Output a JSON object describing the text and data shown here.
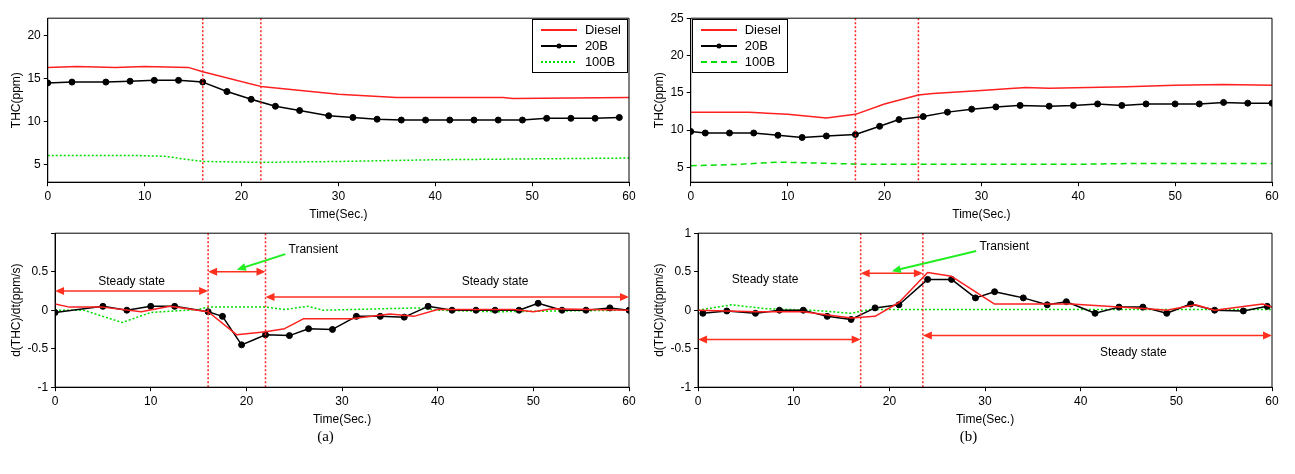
{
  "chart_data": [
    {
      "type": "line",
      "xlabel": "Time(Sec.)",
      "ylabel": "THC(ppm)",
      "xlim": [
        0,
        60
      ],
      "xticks": [
        0,
        10,
        20,
        30,
        40,
        50,
        60
      ],
      "ylim": [
        3,
        22
      ],
      "yticks": [
        5,
        10,
        15,
        20
      ],
      "grid": false,
      "legend": "top right",
      "ref_lines": [
        {
          "axis": "x",
          "value": 16,
          "color": "#ff2020",
          "line_style": "dotted"
        },
        {
          "axis": "x",
          "value": 22,
          "color": "#ff2020",
          "line_style": "dotted"
        }
      ],
      "series": [
        {
          "name": "Diesel",
          "color": "#ff2020",
          "line_style": "solid",
          "marker": "none",
          "x": [
            0,
            3,
            7,
            10,
            14.5,
            16,
            22,
            30,
            36,
            47,
            48,
            60
          ],
          "values": [
            16.3,
            16.4,
            16.3,
            16.4,
            16.3,
            15.8,
            14.1,
            13.2,
            12.8,
            12.8,
            12.7,
            12.8
          ]
        },
        {
          "name": "20B",
          "color": "#000000",
          "line_style": "solid",
          "marker": "circle",
          "x": [
            0,
            2.5,
            6,
            8.5,
            11,
            13.5,
            16,
            18.5,
            21,
            23.5,
            26,
            29,
            31.5,
            34,
            36.5,
            39,
            41.5,
            44,
            46.5,
            49,
            51.5,
            54,
            56.5,
            59
          ],
          "values": [
            14.5,
            14.6,
            14.6,
            14.7,
            14.8,
            14.8,
            14.6,
            13.5,
            12.6,
            11.8,
            11.3,
            10.7,
            10.5,
            10.3,
            10.2,
            10.2,
            10.2,
            10.2,
            10.2,
            10.2,
            10.4,
            10.4,
            10.4,
            10.5
          ]
        },
        {
          "name": "100B",
          "color": "#00dd00",
          "line_style": "dotted",
          "marker": "none",
          "x": [
            0,
            9,
            12,
            16,
            22,
            30,
            40,
            50,
            60
          ],
          "values": [
            6.1,
            6.1,
            6.0,
            5.4,
            5.3,
            5.4,
            5.6,
            5.7,
            5.8
          ]
        }
      ]
    },
    {
      "type": "line",
      "xlabel": "Time(Sec.)",
      "ylabel": "d(THC)/dt(ppm/s)",
      "xlim": [
        0,
        60
      ],
      "xticks": [
        0,
        10,
        20,
        30,
        40,
        50,
        60
      ],
      "ylim": [
        -1,
        1
      ],
      "yticks": [
        -1,
        -0.5,
        0,
        0.5,
        {
          "value": 1,
          "label": null
        }
      ],
      "grid": false,
      "ref_lines": [
        {
          "axis": "x",
          "value": 16,
          "color": "#ff2020",
          "line_style": "dotted"
        },
        {
          "axis": "x",
          "value": 22,
          "color": "#ff2020",
          "line_style": "dotted"
        }
      ],
      "annotations": [
        "Steady state",
        "Transient",
        "Steady state",
        "(a)"
      ],
      "series": [
        {
          "color": "#ff2020",
          "line_style": "solid",
          "marker": "none",
          "x": [
            0,
            1.5,
            5,
            9,
            12,
            16,
            19,
            22,
            24,
            26,
            31,
            35,
            37.5,
            40,
            48,
            50,
            52,
            60
          ],
          "values": [
            0.08,
            0.04,
            0.04,
            -0.02,
            0.05,
            -0.02,
            -0.32,
            -0.28,
            -0.24,
            -0.11,
            -0.11,
            -0.05,
            -0.08,
            0.01,
            0.01,
            -0.02,
            0.02,
            0
          ]
        },
        {
          "color": "#000000",
          "line_style": "solid",
          "marker": "circle",
          "x": [
            0,
            5,
            7.5,
            10,
            12.5,
            16,
            17.5,
            19.5,
            22,
            24.5,
            26.5,
            29,
            31.5,
            34,
            36.5,
            39,
            41.5,
            44,
            46,
            48.5,
            50.5,
            53,
            55.5,
            58,
            60
          ],
          "values": [
            -0.03,
            0.05,
            0,
            0.05,
            0.05,
            -0.02,
            -0.08,
            -0.45,
            -0.32,
            -0.33,
            -0.24,
            -0.25,
            -0.08,
            -0.08,
            -0.09,
            0.05,
            0,
            0,
            0,
            0,
            0.09,
            0,
            0,
            0.03,
            0
          ]
        },
        {
          "color": "#00dd00",
          "line_style": "dotted",
          "marker": "none",
          "x": [
            0,
            3,
            7,
            10,
            15,
            16,
            22,
            24,
            26.5,
            28,
            38,
            40,
            46,
            60
          ],
          "values": [
            0,
            0,
            -0.16,
            -0.03,
            0.01,
            0.04,
            0.04,
            0.01,
            0.05,
            0,
            0.03,
            0,
            -0.02,
            0
          ]
        }
      ]
    },
    {
      "type": "line",
      "xlabel": "Time(Sec.)",
      "ylabel": "THC(ppm)",
      "xlim": [
        0,
        60
      ],
      "xticks": [
        0,
        10,
        20,
        30,
        40,
        50,
        60
      ],
      "ylim": [
        3,
        25
      ],
      "yticks": [
        5,
        10,
        15,
        20,
        25
      ],
      "grid": false,
      "legend": "top left",
      "ref_lines": [
        {
          "axis": "x",
          "value": 17,
          "color": "#ff2020",
          "line_style": "dotted"
        },
        {
          "axis": "x",
          "value": 23.5,
          "color": "#ff2020",
          "line_style": "dotted"
        }
      ],
      "series": [
        {
          "name": "Diesel",
          "color": "#ff2020",
          "line_style": "solid",
          "marker": "none",
          "x": [
            0,
            6,
            10,
            14,
            17,
            20,
            23.5,
            25,
            30,
            34.5,
            37,
            45,
            50,
            55,
            60
          ],
          "values": [
            12.4,
            12.4,
            12.1,
            11.6,
            12.1,
            13.5,
            14.7,
            14.9,
            15.3,
            15.7,
            15.6,
            15.8,
            16.0,
            16.1,
            16.0
          ]
        },
        {
          "name": "20B",
          "color": "#000000",
          "line_style": "solid",
          "marker": "circle",
          "x": [
            0,
            1.5,
            4,
            6.5,
            9,
            11.5,
            14,
            17,
            19.5,
            21.5,
            24,
            26.5,
            29,
            31.5,
            34,
            37,
            39.5,
            42,
            44.5,
            47,
            50,
            52.5,
            55,
            57.5,
            60
          ],
          "values": [
            9.8,
            9.6,
            9.6,
            9.6,
            9.3,
            9.0,
            9.2,
            9.4,
            10.5,
            11.4,
            11.8,
            12.4,
            12.8,
            13.1,
            13.3,
            13.2,
            13.3,
            13.5,
            13.3,
            13.5,
            13.5,
            13.5,
            13.7,
            13.6,
            13.6
          ]
        },
        {
          "name": "100B",
          "color": "#00dd00",
          "line_style": "dashed",
          "marker": "none",
          "x": [
            0,
            5,
            9,
            12,
            18,
            25,
            40,
            45,
            60
          ],
          "values": [
            5.2,
            5.4,
            5.7,
            5.6,
            5.4,
            5.4,
            5.4,
            5.5,
            5.5
          ]
        }
      ]
    },
    {
      "type": "line",
      "xlabel": "Time(Sec.)",
      "ylabel": "d(THC)/dt(ppm/s)",
      "xlim": [
        0,
        60
      ],
      "xticks": [
        0,
        10,
        20,
        30,
        40,
        50,
        60
      ],
      "ylim": [
        -1,
        1
      ],
      "yticks": [
        -1,
        -0.5,
        0,
        0.5,
        1
      ],
      "grid": false,
      "ref_lines": [
        {
          "axis": "x",
          "value": 17,
          "color": "#ff2020",
          "line_style": "dotted"
        },
        {
          "axis": "x",
          "value": 23.5,
          "color": "#ff2020",
          "line_style": "dotted"
        }
      ],
      "annotations": [
        "Steady state",
        "Transient",
        "Steady state",
        "(b)"
      ],
      "series": [
        {
          "color": "#ff2020",
          "line_style": "solid",
          "marker": "none",
          "x": [
            0,
            6,
            11,
            16,
            18.5,
            21,
            24,
            26.5,
            31,
            39,
            44,
            47,
            49,
            52,
            54,
            59,
            60
          ],
          "values": [
            0,
            -0.02,
            -0.02,
            -0.1,
            -0.08,
            0.1,
            0.49,
            0.44,
            0.08,
            0.08,
            0.04,
            0.02,
            0,
            0.07,
            0,
            0.08,
            0.04
          ]
        },
        {
          "color": "#000000",
          "line_style": "solid",
          "marker": "circle",
          "x": [
            0.5,
            3,
            6,
            8.5,
            11,
            13.5,
            16,
            18.5,
            21,
            24,
            26.5,
            29,
            31,
            34,
            36.5,
            38.5,
            41.5,
            44,
            46.5,
            49,
            51.5,
            54,
            57,
            59.5
          ],
          "values": [
            -0.04,
            -0.01,
            -0.04,
            0,
            0,
            -0.08,
            -0.12,
            0.03,
            0.07,
            0.4,
            0.4,
            0.16,
            0.24,
            0.16,
            0.07,
            0.11,
            -0.04,
            0.04,
            0.04,
            -0.04,
            0.08,
            0,
            -0.01,
            0.05
          ]
        },
        {
          "color": "#00dd00",
          "line_style": "dotted",
          "marker": "none",
          "x": [
            0,
            3.5,
            7,
            12,
            16,
            18,
            60
          ],
          "values": [
            0,
            0.07,
            0.02,
            0,
            -0.04,
            0.01,
            0.01
          ]
        }
      ]
    }
  ]
}
